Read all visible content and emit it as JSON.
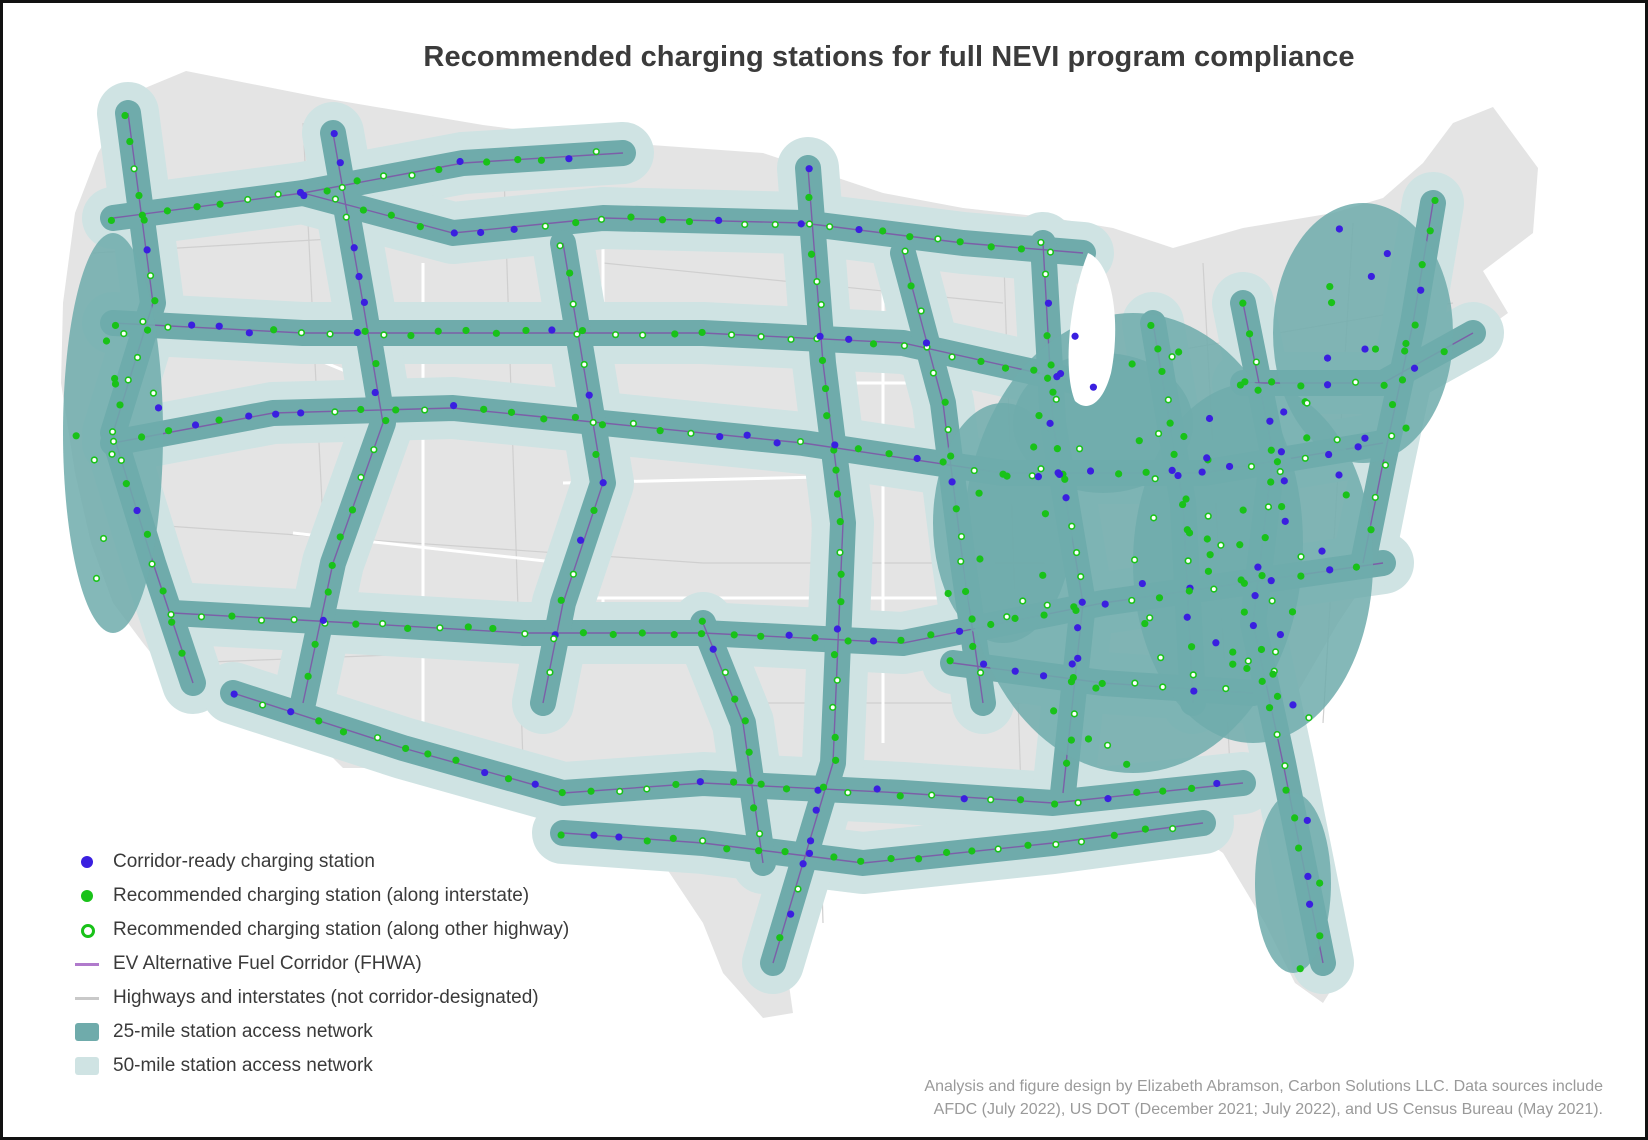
{
  "title": "Recommended charging stations for full NEVI program compliance",
  "legend": [
    {
      "label": "Corridor-ready charging station",
      "symbol": "dot",
      "color": "#3a1fe0"
    },
    {
      "label": "Recommended charging station (along interstate)",
      "symbol": "dot",
      "color": "#19c219"
    },
    {
      "label": "Recommended charging station (along other highway)",
      "symbol": "ring",
      "color": "#19c219"
    },
    {
      "label": "EV Alternative Fuel Corridor (FHWA)",
      "symbol": "line",
      "color": "#b07acc"
    },
    {
      "label": "Highways and interstates (not corridor-designated)",
      "symbol": "line",
      "color": "#c9c9c9"
    },
    {
      "label": "25-mile station access network",
      "symbol": "swatch",
      "color": "#6fabab"
    },
    {
      "label": "50-mile station access network",
      "symbol": "swatch",
      "color": "#cfe3e3"
    }
  ],
  "credit": {
    "line1": "Analysis and figure design by Elizabeth Abramson, Carbon Solutions LLC. Data sources include",
    "line2": "AFDC (July 2022), US DOT (December 2021; July 2022), and US Census Bureau (May 2021)."
  },
  "colors": {
    "land": "#e4e4e4",
    "state_border": "#ffffff",
    "network25": "#6fabab",
    "network50": "#cfe3e3",
    "corridor_ready": "#3a1fe0",
    "recommended": "#19c219"
  }
}
